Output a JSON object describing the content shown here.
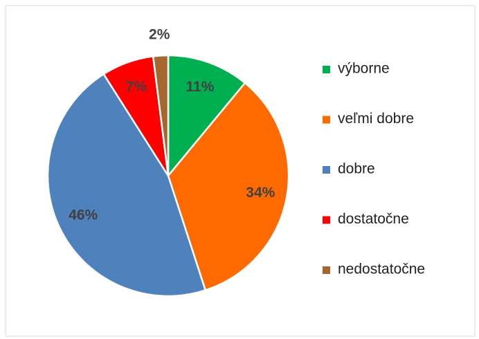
{
  "chart_data": {
    "type": "pie",
    "categories": [
      "výborne",
      "veľmi dobre",
      "dobre",
      "dostatočne",
      "nedostatočne"
    ],
    "values": [
      11,
      34,
      46,
      7,
      2
    ],
    "value_labels": [
      "11%",
      "34%",
      "46%",
      "7%",
      "2%"
    ],
    "colors": [
      "#00b050",
      "#ff6a00",
      "#4f81bd",
      "#ff0000",
      "#a5672e"
    ],
    "legend": "right"
  }
}
